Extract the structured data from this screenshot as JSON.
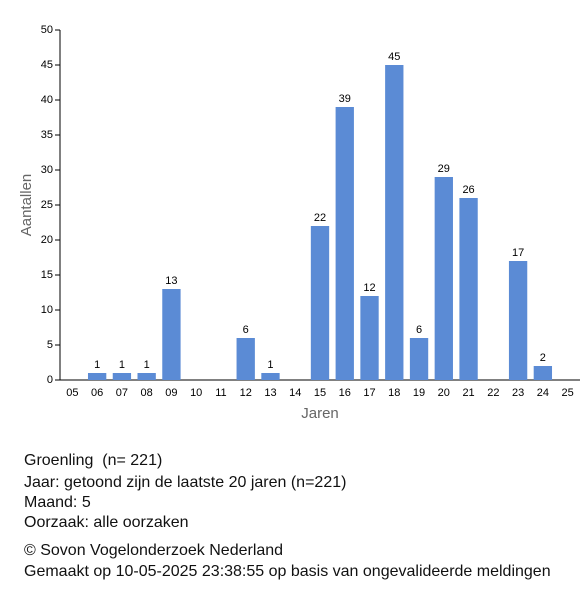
{
  "chart_data": {
    "type": "bar",
    "x_label": "Jaren",
    "y_label": "Aantallen",
    "categories": [
      "05",
      "06",
      "07",
      "08",
      "09",
      "10",
      "11",
      "12",
      "13",
      "14",
      "15",
      "16",
      "17",
      "18",
      "19",
      "20",
      "21",
      "22",
      "23",
      "24",
      "25"
    ],
    "values": [
      null,
      1,
      1,
      1,
      13,
      null,
      null,
      6,
      1,
      null,
      22,
      39,
      12,
      45,
      6,
      29,
      26,
      null,
      17,
      2,
      null
    ],
    "color": "#5b8bd5",
    "ylim": [
      0,
      50
    ],
    "yticks": [
      0,
      5,
      10,
      15,
      20,
      25,
      30,
      35,
      40,
      45,
      50
    ],
    "grid": false
  },
  "info": [
    "Groenling  (n= 221)",
    "Jaar: getoond zijn de laatste 20 jaren (n=221)",
    "Maand: 5",
    "Oorzaak: alle oorzaken"
  ],
  "footer": [
    "© Sovon Vogelonderzoek Nederland",
    "Gemaakt op 10-05-2025 23:38:55 op basis van ongevalideerde meldingen"
  ]
}
